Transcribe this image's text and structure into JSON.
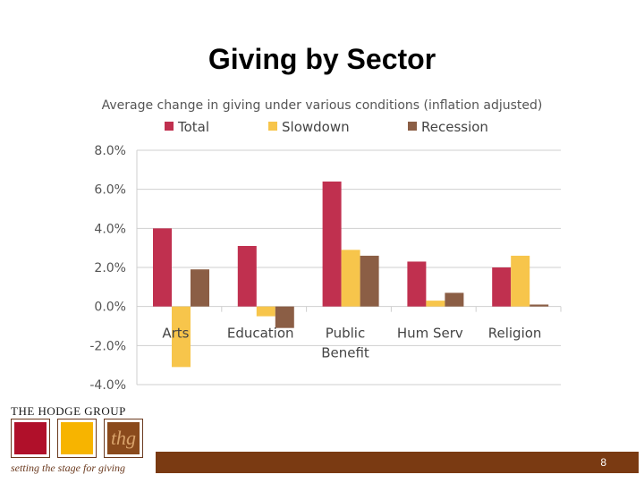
{
  "slide": {
    "title": "Giving by Sector",
    "page_number": "8"
  },
  "logo": {
    "name": "THE HODGE GROUP",
    "monogram": "thg",
    "tagline": "setting the stage for giving"
  },
  "colors": {
    "total": "#c0304f",
    "slowdown": "#f7c54b",
    "recession": "#8b5e45",
    "footer": "#7a3a12"
  },
  "chart_data": {
    "type": "bar",
    "title": "Average change in giving under various conditions (inflation adjusted)",
    "categories": [
      "Arts",
      "Education",
      "Public Benefit",
      "Hum Serv",
      "Religion"
    ],
    "series": [
      {
        "name": "Total",
        "values": [
          4.0,
          3.1,
          6.4,
          2.3,
          2.0
        ]
      },
      {
        "name": "Slowdown",
        "values": [
          -3.1,
          -0.5,
          2.9,
          0.3,
          2.6
        ]
      },
      {
        "name": "Recession",
        "values": [
          1.9,
          -1.1,
          2.6,
          0.7,
          0.1
        ]
      }
    ],
    "ylim": [
      -4.0,
      8.0
    ],
    "yticks": [
      "8.0%",
      "6.0%",
      "4.0%",
      "2.0%",
      "0.0%",
      "-2.0%",
      "-4.0%"
    ],
    "ytick_values": [
      8,
      6,
      4,
      2,
      0,
      -2,
      -4
    ],
    "grid": true,
    "legend": "top"
  }
}
